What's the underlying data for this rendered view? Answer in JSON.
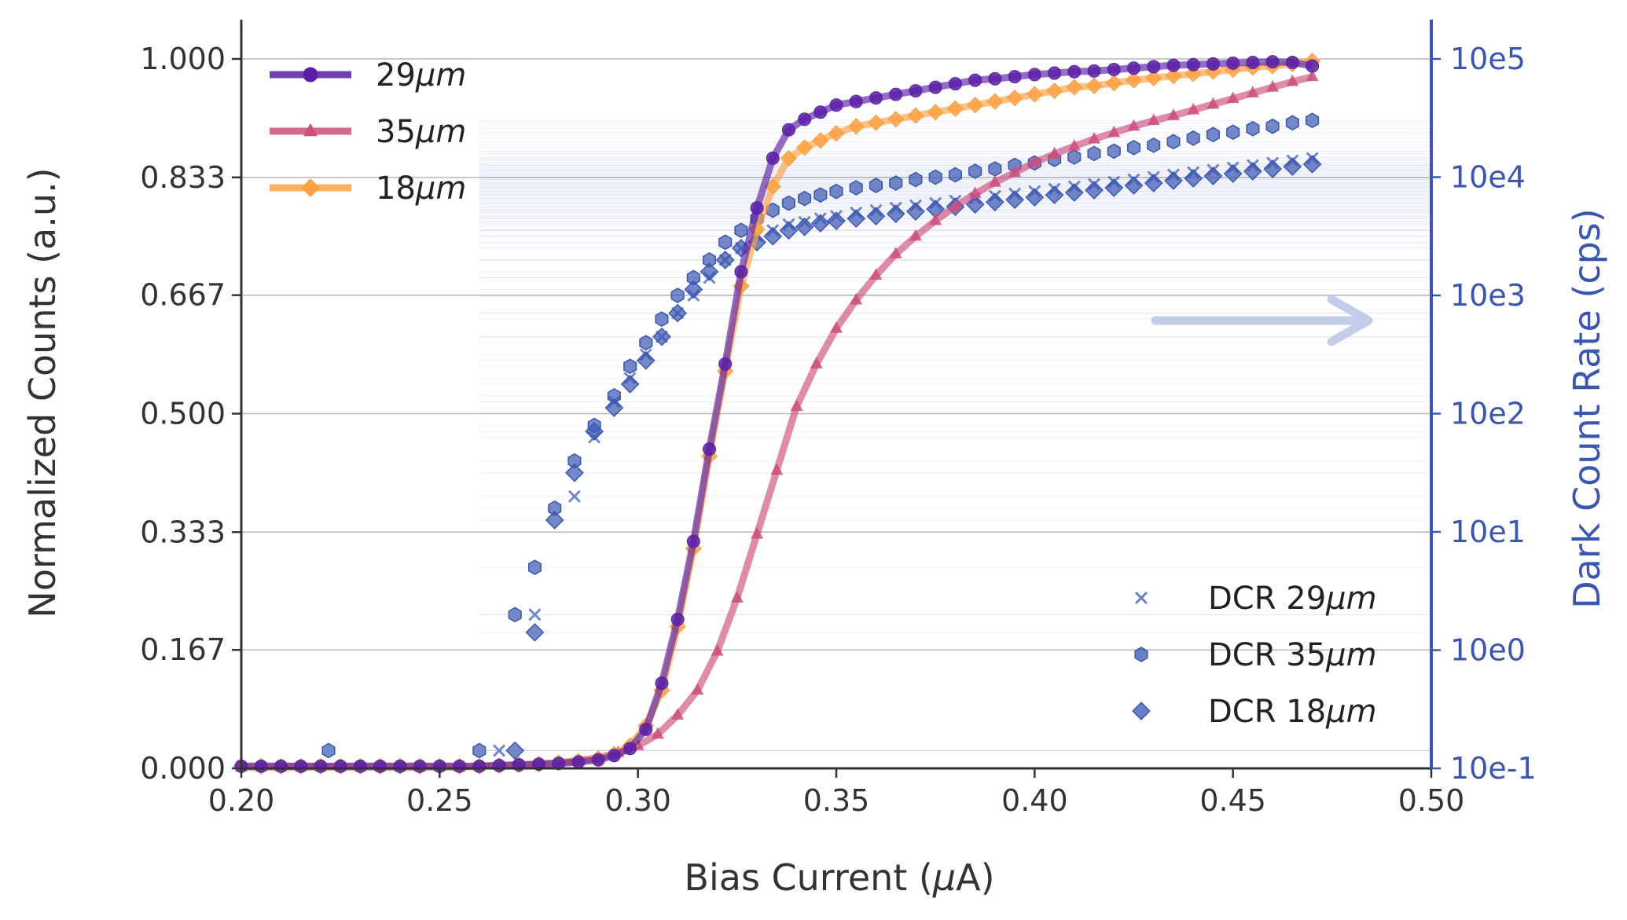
{
  "chart_data": {
    "type": "line",
    "xlabel": "Bias Current (μA)",
    "ylabel": "Normalized Counts (a.u.)",
    "y2label": "Dark Count Rate (cps)",
    "xlim": [
      0.2,
      0.5
    ],
    "ylim": [
      0,
      1
    ],
    "y2_scale": "log",
    "y2lim_exponent": [
      -1,
      5
    ],
    "x_ticks": [
      "0.20",
      "0.25",
      "0.30",
      "0.35",
      "0.40",
      "0.45",
      "0.50"
    ],
    "y_ticks": [
      "0.000",
      "0.167",
      "0.333",
      "0.500",
      "0.667",
      "0.833",
      "1.000"
    ],
    "y2_ticks": [
      "10e-1",
      "10e0",
      "10e1",
      "10e2",
      "10e3",
      "10e4",
      "10e5"
    ],
    "grid": "horizontal",
    "legend_counts_placement": "top-left",
    "legend_dcr_placement": "bottom-right",
    "counts_series": [
      {
        "name": "29μm",
        "label_base": "29",
        "label_unit": "μm",
        "color": "#5a1fa6",
        "marker": "circle",
        "x": [
          0.2,
          0.205,
          0.21,
          0.215,
          0.22,
          0.225,
          0.23,
          0.235,
          0.24,
          0.245,
          0.25,
          0.255,
          0.26,
          0.265,
          0.27,
          0.275,
          0.28,
          0.285,
          0.29,
          0.294,
          0.298,
          0.302,
          0.306,
          0.31,
          0.314,
          0.318,
          0.322,
          0.326,
          0.33,
          0.334,
          0.338,
          0.342,
          0.346,
          0.35,
          0.355,
          0.36,
          0.365,
          0.37,
          0.375,
          0.38,
          0.385,
          0.39,
          0.395,
          0.4,
          0.405,
          0.41,
          0.415,
          0.42,
          0.425,
          0.43,
          0.435,
          0.44,
          0.445,
          0.45,
          0.455,
          0.46,
          0.465,
          0.47
        ],
        "y": [
          0.003,
          0.003,
          0.003,
          0.003,
          0.003,
          0.003,
          0.003,
          0.003,
          0.003,
          0.003,
          0.003,
          0.003,
          0.003,
          0.004,
          0.005,
          0.006,
          0.007,
          0.009,
          0.012,
          0.018,
          0.028,
          0.055,
          0.12,
          0.21,
          0.32,
          0.45,
          0.57,
          0.7,
          0.79,
          0.86,
          0.9,
          0.915,
          0.925,
          0.935,
          0.94,
          0.945,
          0.95,
          0.955,
          0.96,
          0.965,
          0.97,
          0.972,
          0.975,
          0.978,
          0.98,
          0.982,
          0.983,
          0.985,
          0.987,
          0.989,
          0.991,
          0.992,
          0.993,
          0.994,
          0.995,
          0.996,
          0.995,
          0.99
        ]
      },
      {
        "name": "35μm",
        "label_base": "35",
        "label_unit": "μm",
        "color": "#cc4f7d",
        "marker": "triangle",
        "x": [
          0.2,
          0.205,
          0.21,
          0.215,
          0.22,
          0.225,
          0.23,
          0.235,
          0.24,
          0.245,
          0.25,
          0.255,
          0.26,
          0.265,
          0.27,
          0.275,
          0.28,
          0.285,
          0.29,
          0.295,
          0.3,
          0.305,
          0.31,
          0.315,
          0.32,
          0.325,
          0.33,
          0.335,
          0.34,
          0.345,
          0.35,
          0.355,
          0.36,
          0.365,
          0.37,
          0.375,
          0.38,
          0.385,
          0.39,
          0.395,
          0.4,
          0.405,
          0.41,
          0.415,
          0.42,
          0.425,
          0.43,
          0.435,
          0.44,
          0.445,
          0.45,
          0.455,
          0.46,
          0.465,
          0.47
        ],
        "y": [
          0.002,
          0.002,
          0.002,
          0.002,
          0.002,
          0.002,
          0.002,
          0.002,
          0.002,
          0.002,
          0.002,
          0.002,
          0.003,
          0.004,
          0.005,
          0.006,
          0.008,
          0.011,
          0.015,
          0.022,
          0.032,
          0.048,
          0.075,
          0.11,
          0.165,
          0.24,
          0.33,
          0.42,
          0.51,
          0.57,
          0.62,
          0.66,
          0.695,
          0.725,
          0.75,
          0.772,
          0.792,
          0.81,
          0.826,
          0.84,
          0.854,
          0.866,
          0.877,
          0.887,
          0.896,
          0.905,
          0.913,
          0.92,
          0.928,
          0.936,
          0.944,
          0.952,
          0.96,
          0.968,
          0.975
        ]
      },
      {
        "name": "18μm",
        "label_base": "18",
        "label_unit": "μm",
        "color": "#fca245",
        "marker": "diamond",
        "x": [
          0.2,
          0.205,
          0.21,
          0.215,
          0.22,
          0.225,
          0.23,
          0.235,
          0.24,
          0.245,
          0.25,
          0.255,
          0.26,
          0.265,
          0.27,
          0.275,
          0.28,
          0.285,
          0.29,
          0.294,
          0.298,
          0.302,
          0.306,
          0.31,
          0.314,
          0.318,
          0.322,
          0.326,
          0.33,
          0.334,
          0.338,
          0.342,
          0.346,
          0.35,
          0.355,
          0.36,
          0.365,
          0.37,
          0.375,
          0.38,
          0.385,
          0.39,
          0.395,
          0.4,
          0.405,
          0.41,
          0.415,
          0.42,
          0.425,
          0.43,
          0.435,
          0.44,
          0.445,
          0.45,
          0.455,
          0.46,
          0.465,
          0.47
        ],
        "y": [
          0.003,
          0.003,
          0.003,
          0.003,
          0.003,
          0.003,
          0.003,
          0.003,
          0.003,
          0.003,
          0.003,
          0.003,
          0.003,
          0.004,
          0.005,
          0.006,
          0.008,
          0.01,
          0.014,
          0.02,
          0.032,
          0.06,
          0.11,
          0.2,
          0.31,
          0.44,
          0.56,
          0.68,
          0.76,
          0.82,
          0.86,
          0.875,
          0.885,
          0.895,
          0.905,
          0.91,
          0.915,
          0.92,
          0.925,
          0.93,
          0.935,
          0.94,
          0.945,
          0.95,
          0.955,
          0.96,
          0.962,
          0.966,
          0.97,
          0.973,
          0.976,
          0.979,
          0.982,
          0.985,
          0.988,
          0.99,
          0.993,
          0.997
        ]
      }
    ],
    "dcr_series": [
      {
        "name": "DCR 29μm",
        "label_base": "DCR 29",
        "label_unit": "μm",
        "color": "#3a56b0",
        "marker": "x",
        "x": [
          0.265,
          0.274,
          0.284,
          0.289,
          0.294,
          0.298,
          0.302,
          0.306,
          0.31,
          0.314,
          0.318,
          0.322,
          0.326,
          0.33,
          0.334,
          0.338,
          0.342,
          0.346,
          0.35,
          0.355,
          0.36,
          0.365,
          0.37,
          0.375,
          0.38,
          0.385,
          0.39,
          0.395,
          0.4,
          0.405,
          0.41,
          0.415,
          0.42,
          0.425,
          0.43,
          0.435,
          0.44,
          0.445,
          0.45,
          0.455,
          0.46,
          0.465,
          0.47
        ],
        "logy": [
          -0.85,
          0.3,
          1.3,
          1.8,
          2.1,
          2.3,
          2.5,
          2.65,
          2.85,
          3.0,
          3.15,
          3.3,
          3.4,
          3.5,
          3.55,
          3.6,
          3.62,
          3.65,
          3.67,
          3.7,
          3.72,
          3.74,
          3.76,
          3.78,
          3.8,
          3.82,
          3.84,
          3.86,
          3.88,
          3.9,
          3.92,
          3.94,
          3.96,
          3.98,
          4.0,
          4.02,
          4.04,
          4.06,
          4.08,
          4.1,
          4.12,
          4.14,
          4.16
        ]
      },
      {
        "name": "DCR 35μm",
        "label_base": "DCR 35",
        "label_unit": "μm",
        "color": "#3a56b0",
        "marker": "hexagon",
        "x": [
          0.222,
          0.26,
          0.269,
          0.274,
          0.279,
          0.284,
          0.289,
          0.294,
          0.298,
          0.302,
          0.306,
          0.31,
          0.314,
          0.318,
          0.322,
          0.326,
          0.33,
          0.334,
          0.338,
          0.342,
          0.346,
          0.35,
          0.355,
          0.36,
          0.365,
          0.37,
          0.375,
          0.38,
          0.385,
          0.39,
          0.395,
          0.4,
          0.405,
          0.41,
          0.415,
          0.42,
          0.425,
          0.43,
          0.435,
          0.44,
          0.445,
          0.45,
          0.455,
          0.46,
          0.465,
          0.47
        ],
        "logy": [
          -0.85,
          -0.85,
          0.3,
          0.7,
          1.2,
          1.6,
          1.9,
          2.15,
          2.4,
          2.6,
          2.8,
          3.0,
          3.15,
          3.3,
          3.45,
          3.55,
          3.65,
          3.72,
          3.78,
          3.82,
          3.85,
          3.88,
          3.91,
          3.93,
          3.95,
          3.98,
          4.0,
          4.02,
          4.05,
          4.07,
          4.1,
          4.12,
          4.15,
          4.17,
          4.2,
          4.22,
          4.25,
          4.27,
          4.3,
          4.33,
          4.36,
          4.38,
          4.41,
          4.43,
          4.46,
          4.48
        ]
      },
      {
        "name": "DCR 18μm",
        "label_base": "DCR 18",
        "label_unit": "μm",
        "color": "#3a56b0",
        "marker": "diamond",
        "x": [
          0.269,
          0.274,
          0.279,
          0.284,
          0.289,
          0.294,
          0.298,
          0.302,
          0.306,
          0.31,
          0.314,
          0.318,
          0.322,
          0.326,
          0.33,
          0.334,
          0.338,
          0.342,
          0.346,
          0.35,
          0.355,
          0.36,
          0.365,
          0.37,
          0.375,
          0.38,
          0.385,
          0.39,
          0.395,
          0.4,
          0.405,
          0.41,
          0.415,
          0.42,
          0.425,
          0.43,
          0.435,
          0.44,
          0.445,
          0.45,
          0.455,
          0.46,
          0.465,
          0.47
        ],
        "logy": [
          -0.85,
          0.15,
          1.1,
          1.5,
          1.85,
          2.05,
          2.25,
          2.45,
          2.65,
          2.85,
          3.05,
          3.2,
          3.3,
          3.4,
          3.45,
          3.5,
          3.55,
          3.58,
          3.61,
          3.63,
          3.65,
          3.67,
          3.69,
          3.71,
          3.73,
          3.75,
          3.77,
          3.79,
          3.81,
          3.83,
          3.85,
          3.87,
          3.89,
          3.91,
          3.93,
          3.95,
          3.97,
          3.99,
          4.01,
          4.03,
          4.05,
          4.07,
          4.09,
          4.11
        ]
      }
    ]
  }
}
